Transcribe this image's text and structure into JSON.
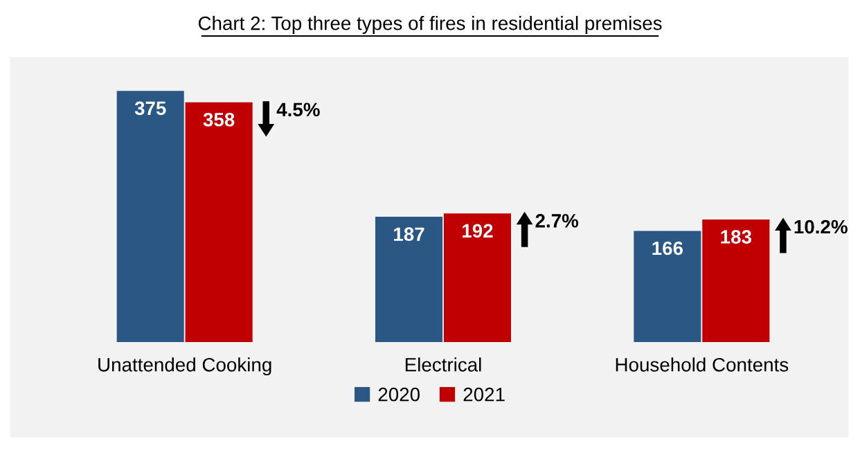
{
  "chart_data": {
    "type": "bar",
    "title": "Chart 2: Top three types of fires in residential premises",
    "categories": [
      "Unattended Cooking",
      "Electrical",
      "Household Contents"
    ],
    "series": [
      {
        "name": "2020",
        "color": "#2a5783",
        "values": [
          375,
          187,
          166
        ]
      },
      {
        "name": "2021",
        "color": "#c00000",
        "values": [
          358,
          192,
          183
        ]
      }
    ],
    "data_labels": true,
    "legend": "bottom",
    "grid": false,
    "annotations": [
      "4.5%",
      "2.7%",
      "10.2%"
    ]
  }
}
